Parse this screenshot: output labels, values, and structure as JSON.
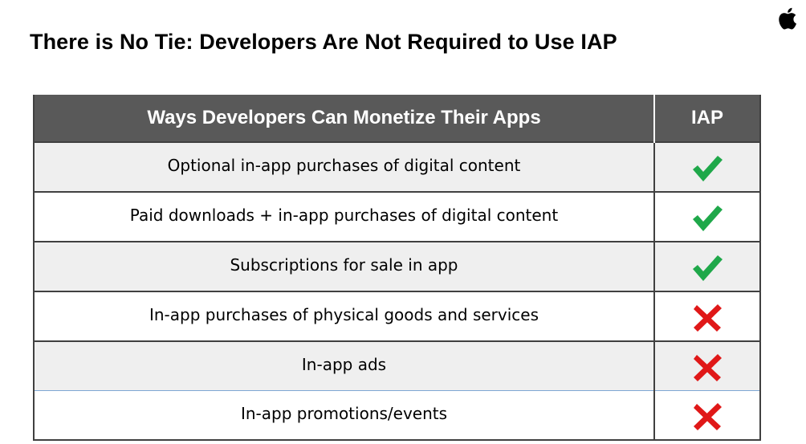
{
  "title": "There is No Tie: Developers Are Not Required to Use IAP",
  "table": {
    "headers": [
      "Ways Developers Can Monetize Their Apps",
      "IAP"
    ],
    "rows": [
      {
        "method": "Optional in-app purchases of digital content",
        "iap": "check"
      },
      {
        "method": "Paid downloads + in-app purchases of digital content",
        "iap": "check"
      },
      {
        "method": "Subscriptions for sale in app",
        "iap": "check"
      },
      {
        "method": "In-app purchases of physical goods and services",
        "iap": "cross"
      },
      {
        "method": "In-app ads",
        "iap": "cross"
      },
      {
        "method": "In-app promotions/events",
        "iap": "cross"
      }
    ]
  },
  "icons": {
    "logo": "apple-logo-icon",
    "yes": "green-checkmark-icon",
    "no": "red-x-icon"
  },
  "colors": {
    "header_bg": "#595959",
    "row_shade": "#efefef",
    "check": "#1fa84a",
    "cross": "#e01818"
  }
}
